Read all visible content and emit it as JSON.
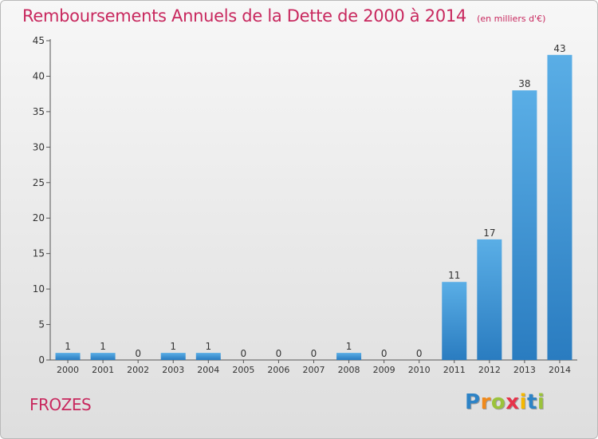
{
  "chart_data": {
    "type": "bar",
    "title": "Remboursements Annuels de la Dette de 2000 à 2014",
    "unit_note": "(en milliers d'€)",
    "categories": [
      "2000",
      "2001",
      "2002",
      "2003",
      "2004",
      "2005",
      "2006",
      "2007",
      "2008",
      "2009",
      "2010",
      "2011",
      "2012",
      "2013",
      "2014"
    ],
    "values": [
      1,
      1,
      0,
      1,
      1,
      0,
      0,
      0,
      1,
      0,
      0,
      11,
      17,
      38,
      43
    ],
    "ylim": [
      0,
      45
    ],
    "yticks": [
      0,
      5,
      10,
      15,
      20,
      25,
      30,
      35,
      40,
      45
    ],
    "grid": false,
    "colors": {
      "bar_top": "#5aaee6",
      "bar_bottom": "#2a7cc0",
      "text": "#c8285e"
    }
  },
  "place_name": "FROZES",
  "logo": {
    "letters": [
      "P",
      "r",
      "o",
      "x",
      "i",
      "t",
      "i"
    ],
    "colors": [
      "#2d83c6",
      "#f08a1c",
      "#9bc33b",
      "#e6334a",
      "#f5b800",
      "#2d83c6",
      "#9bc33b"
    ]
  }
}
